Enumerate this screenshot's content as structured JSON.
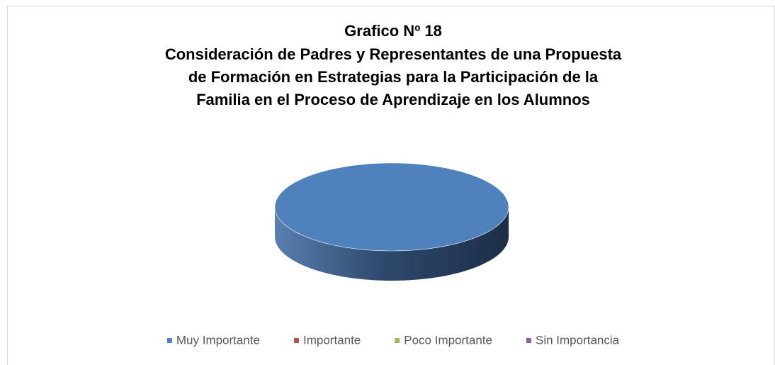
{
  "chart_data": {
    "type": "pie3d",
    "title": [
      "Grafico Nº 18",
      "Consideración de Padres y Representantes de  una Propuesta",
      "de Formación en Estrategias para la Participación de la",
      "Familia en el Proceso de Aprendizaje en los Alumnos"
    ],
    "categories": [
      "Muy Importante",
      "Importante",
      "Poco Importante",
      "Sin Importancia"
    ],
    "values": [
      100,
      0,
      0,
      0
    ],
    "colors": [
      "#4f81bd",
      "#c0504d",
      "#9bbb59",
      "#8064a2"
    ],
    "legend": "bottom"
  }
}
